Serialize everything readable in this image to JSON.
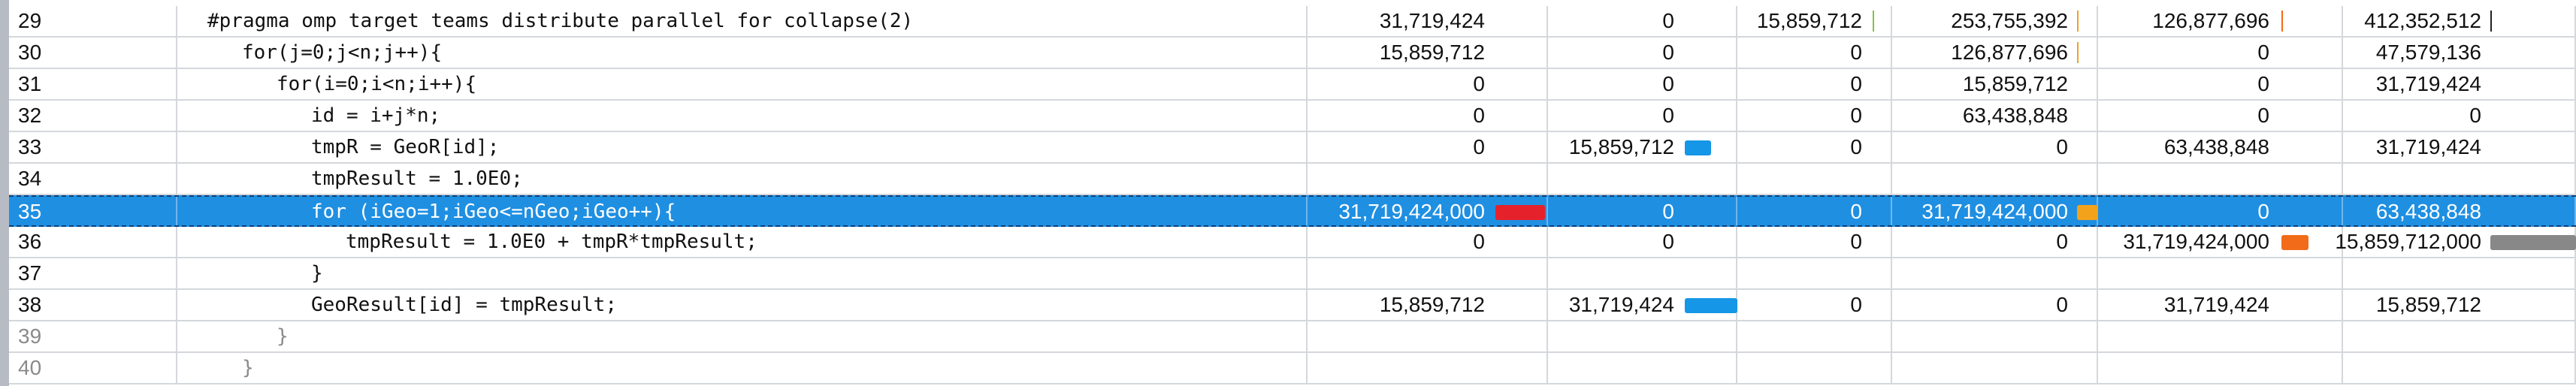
{
  "colors": {
    "selected_row": "#1f8fe2",
    "bar_red": "#e5212b",
    "bar_blue": "#1596e6",
    "bar_green": "#83c341",
    "bar_orange": "#f3a21c",
    "bar_dark_orange": "#f26b18",
    "bar_gray": "#888888",
    "bar_black": "#222222"
  },
  "rows": [
    {
      "line": "29",
      "code": "#pragma omp target teams distribute parallel for collapse(2)",
      "indent": 0,
      "dim": false,
      "selected": false,
      "c1": "31,719,424",
      "c2": "0",
      "c3": "15,859,712",
      "c4": "253,755,392",
      "c5": "126,877,696",
      "c6": "412,352,512"
    },
    {
      "line": "30",
      "code": "for(j=0;j<n;j++){",
      "indent": 1,
      "dim": false,
      "selected": false,
      "c1": "15,859,712",
      "c2": "0",
      "c3": "0",
      "c4": "126,877,696",
      "c5": "0",
      "c6": "47,579,136"
    },
    {
      "line": "31",
      "code": "for(i=0;i<n;i++){",
      "indent": 2,
      "dim": false,
      "selected": false,
      "c1": "0",
      "c2": "0",
      "c3": "0",
      "c4": "15,859,712",
      "c5": "0",
      "c6": "31,719,424"
    },
    {
      "line": "32",
      "code": "id = i+j*n;",
      "indent": 3,
      "dim": false,
      "selected": false,
      "c1": "0",
      "c2": "0",
      "c3": "0",
      "c4": "63,438,848",
      "c5": "0",
      "c6": "0"
    },
    {
      "line": "33",
      "code": "tmpR = GeoR[id];",
      "indent": 3,
      "dim": false,
      "selected": false,
      "c1": "0",
      "c2": "15,859,712",
      "c3": "0",
      "c4": "0",
      "c5": "63,438,848",
      "c6": "31,719,424"
    },
    {
      "line": "34",
      "code": "tmpResult = 1.0E0;",
      "indent": 3,
      "dim": false,
      "selected": false,
      "c1": "",
      "c2": "",
      "c3": "",
      "c4": "",
      "c5": "",
      "c6": ""
    },
    {
      "line": "35",
      "code": "for (iGeo=1;iGeo<=nGeo;iGeo++){",
      "indent": 3,
      "dim": false,
      "selected": true,
      "c1": "31,719,424,000",
      "c2": "0",
      "c3": "0",
      "c4": "31,719,424,000",
      "c5": "0",
      "c6": "63,438,848"
    },
    {
      "line": "36",
      "code": "tmpResult = 1.0E0 + tmpR*tmpResult;",
      "indent": 4,
      "dim": false,
      "selected": false,
      "c1": "0",
      "c2": "0",
      "c3": "0",
      "c4": "0",
      "c5": "31,719,424,000",
      "c6": "15,859,712,000"
    },
    {
      "line": "37",
      "code": "}",
      "indent": 3,
      "dim": false,
      "selected": false,
      "c1": "",
      "c2": "",
      "c3": "",
      "c4": "",
      "c5": "",
      "c6": ""
    },
    {
      "line": "38",
      "code": "GeoResult[id] = tmpResult;",
      "indent": 3,
      "dim": false,
      "selected": false,
      "c1": "15,859,712",
      "c2": "31,719,424",
      "c3": "0",
      "c4": "0",
      "c5": "31,719,424",
      "c6": "15,859,712"
    },
    {
      "line": "39",
      "code": "}",
      "indent": 2,
      "dim": true,
      "selected": false,
      "c1": "",
      "c2": "",
      "c3": "",
      "c4": "",
      "c5": "",
      "c6": ""
    },
    {
      "line": "40",
      "code": "}",
      "indent": 1,
      "dim": true,
      "selected": false,
      "c1": "",
      "c2": "",
      "c3": "",
      "c4": "",
      "c5": "",
      "c6": ""
    }
  ],
  "bars": [
    {
      "row": 0,
      "col": 3,
      "color": "bar_green",
      "fraction": 0.04
    },
    {
      "row": 0,
      "col": 4,
      "color": "bar_orange",
      "fraction": 0.01
    },
    {
      "row": 0,
      "col": 5,
      "color": "bar_dark_orange",
      "fraction": 0.01
    },
    {
      "row": 0,
      "col": 6,
      "color": "bar_black",
      "fraction": 0.01
    },
    {
      "row": 1,
      "col": 4,
      "color": "bar_orange",
      "fraction": 0.005
    },
    {
      "row": 4,
      "col": 2,
      "color": "bar_blue",
      "fraction": 0.5
    },
    {
      "row": 6,
      "col": 1,
      "color": "bar_red",
      "fraction": 1.0
    },
    {
      "row": 6,
      "col": 4,
      "color": "bar_orange",
      "fraction": 1.0
    },
    {
      "row": 7,
      "col": 5,
      "color": "bar_dark_orange",
      "fraction": 1.0
    },
    {
      "row": 7,
      "col": 6,
      "color": "bar_gray",
      "fraction": 1.0
    },
    {
      "row": 9,
      "col": 2,
      "color": "bar_blue",
      "fraction": 1.0
    }
  ]
}
